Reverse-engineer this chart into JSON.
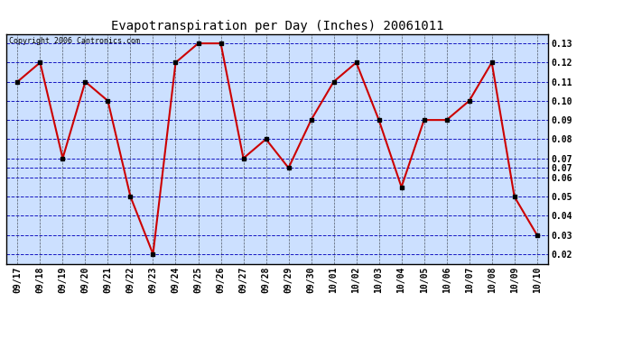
{
  "title": "Evapotranspiration per Day (Inches) 20061011",
  "copyright": "Copyright 2006 Cantronics.com",
  "dates": [
    "09/17",
    "09/18",
    "09/19",
    "09/20",
    "09/21",
    "09/22",
    "09/23",
    "09/24",
    "09/25",
    "09/26",
    "09/27",
    "09/28",
    "09/29",
    "09/30",
    "10/01",
    "10/02",
    "10/03",
    "10/04",
    "10/05",
    "10/06",
    "10/07",
    "10/08",
    "10/09",
    "10/10"
  ],
  "values": [
    0.11,
    0.12,
    0.07,
    0.11,
    0.1,
    0.05,
    0.02,
    0.12,
    0.13,
    0.13,
    0.07,
    0.08,
    0.065,
    0.09,
    0.11,
    0.12,
    0.09,
    0.055,
    0.09,
    0.09,
    0.1,
    0.12,
    0.05,
    0.03
  ],
  "line_color": "#cc0000",
  "marker_color": "#000000",
  "bg_color": "#cce0ff",
  "grid_color_h": "#0000bb",
  "grid_color_v": "#000000",
  "title_fontsize": 10,
  "tick_fontsize": 7,
  "yticks": [
    0.02,
    0.03,
    0.04,
    0.05,
    0.06,
    0.07,
    0.07,
    0.08,
    0.09,
    0.1,
    0.11,
    0.12,
    0.13
  ],
  "ytick_positions": [
    0.02,
    0.03,
    0.04,
    0.05,
    0.06,
    0.065,
    0.07,
    0.08,
    0.09,
    0.1,
    0.11,
    0.12,
    0.13
  ],
  "ylim_low": 0.015,
  "ylim_high": 0.135
}
